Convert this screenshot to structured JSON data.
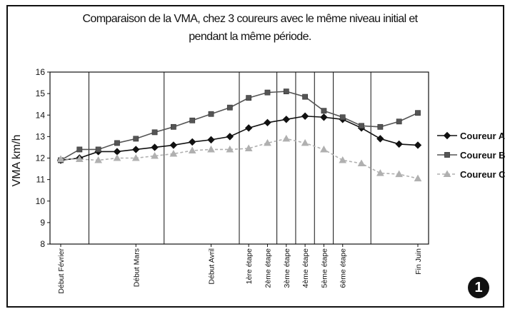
{
  "chart_data": {
    "type": "line",
    "title_line1": "Comparaison de la VMA, chez 3 coureurs avec le même niveau initial et",
    "title_line2": "pendant la même période.",
    "ylabel": "VMA km/h",
    "ylim": [
      8,
      16
    ],
    "yticks": [
      "8",
      "9",
      "10",
      "11",
      "12",
      "13",
      "14",
      "15",
      "16"
    ],
    "x_labels": [
      {
        "index": 0,
        "label": "Début Février"
      },
      {
        "index": 4,
        "label": "Début Mars"
      },
      {
        "index": 8,
        "label": "Début Avril"
      },
      {
        "index": 10,
        "label": "1ère étape"
      },
      {
        "index": 11,
        "label": "2ème étape"
      },
      {
        "index": 12,
        "label": "3ème étape"
      },
      {
        "index": 13,
        "label": "4ème étape"
      },
      {
        "index": 14,
        "label": "5ème étape"
      },
      {
        "index": 15,
        "label": "6ème étape"
      },
      {
        "index": 19,
        "label": "Fin Juin"
      }
    ],
    "separator_positions": [
      1.5,
      5.5,
      9.5,
      11.5,
      12.5,
      13.5,
      14.5,
      16.5
    ],
    "legend_position": "right",
    "series": [
      {
        "name": "Coureur A",
        "color": "#111111",
        "marker": "diamond",
        "line": "solid",
        "values": [
          11.9,
          12.0,
          12.3,
          12.3,
          12.4,
          12.5,
          12.6,
          12.75,
          12.85,
          13.0,
          13.4,
          13.65,
          13.8,
          13.95,
          13.9,
          13.8,
          13.4,
          12.9,
          12.65,
          12.6
        ]
      },
      {
        "name": "Coureur B",
        "color": "#555555",
        "marker": "square",
        "line": "solid",
        "values": [
          11.9,
          12.4,
          12.4,
          12.7,
          12.9,
          13.2,
          13.45,
          13.75,
          14.05,
          14.35,
          14.8,
          15.05,
          15.1,
          14.85,
          14.2,
          13.9,
          13.5,
          13.45,
          13.7,
          14.1
        ]
      },
      {
        "name": "Coureur C",
        "color": "#b0b0b0",
        "marker": "triangle",
        "line": "dashed",
        "values": [
          11.95,
          11.95,
          11.9,
          12.0,
          12.0,
          12.1,
          12.2,
          12.35,
          12.4,
          12.4,
          12.45,
          12.7,
          12.9,
          12.7,
          12.4,
          11.9,
          11.75,
          11.3,
          11.25,
          11.05
        ]
      }
    ]
  },
  "badge": "1"
}
